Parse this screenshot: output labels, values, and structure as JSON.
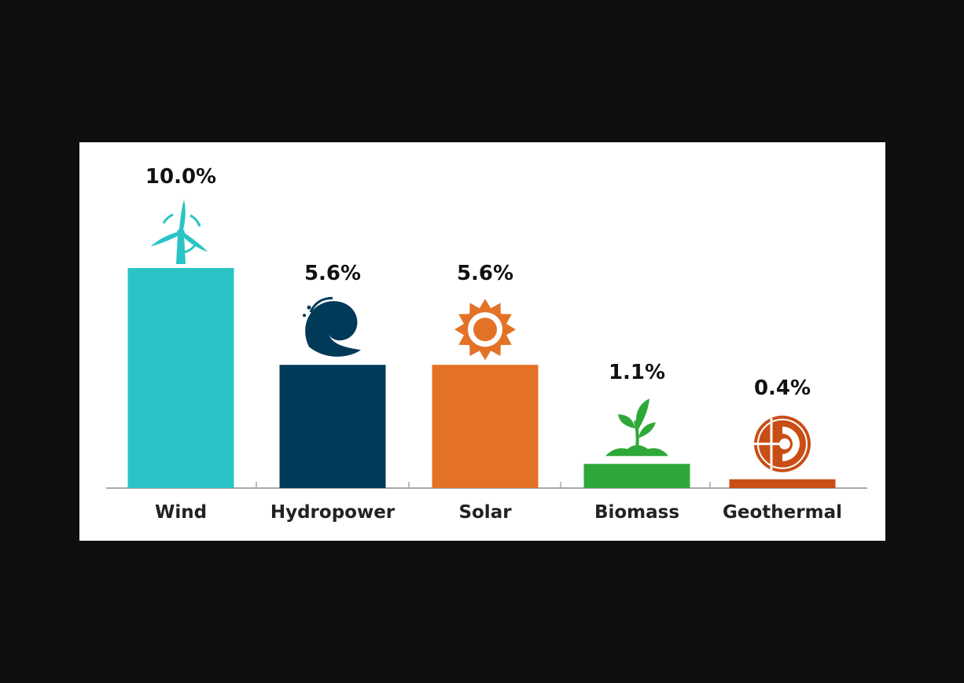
{
  "chart_data": {
    "type": "bar",
    "title": "",
    "xlabel": "",
    "ylabel": "",
    "ylim": [
      0,
      10
    ],
    "grid": false,
    "categories": [
      "Wind",
      "Hydropower",
      "Solar",
      "Biomass",
      "Geothermal"
    ],
    "values": [
      10.0,
      5.6,
      5.6,
      1.1,
      0.4
    ],
    "value_labels": [
      "10.0%",
      "5.6%",
      "5.6%",
      "1.1%",
      "0.4%"
    ],
    "colors": [
      "#2bc4c6",
      "#003a58",
      "#e37227",
      "#2fa83a",
      "#c94e16"
    ],
    "icons": [
      "wind-turbine-icon",
      "wave-icon",
      "sun-icon",
      "plant-sprout-icon",
      "geothermal-earth-icon"
    ]
  }
}
